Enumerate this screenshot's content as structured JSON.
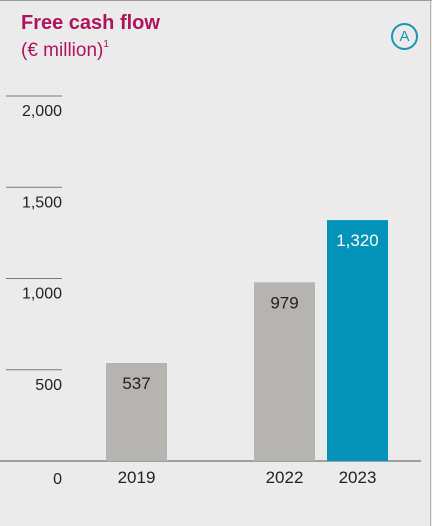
{
  "header": {
    "title": "Free cash flow",
    "subtitle": "(€ million)",
    "subtitle_note": "1",
    "badge": "A"
  },
  "colors": {
    "title": "#b0135e",
    "bar_past": "#b5b4b1",
    "bar_current": "#0393b8",
    "badge": "#1596b5",
    "background": "#ebebeb"
  },
  "chart_data": {
    "type": "bar",
    "title": "Free cash flow",
    "ylabel": "(€ million)",
    "xlabel": "",
    "ylim": [
      0,
      2000
    ],
    "yticks": [
      0,
      500,
      1000,
      1500,
      2000
    ],
    "ytick_labels": [
      "0",
      "500",
      "1,000",
      "1,500",
      "2,000"
    ],
    "categories": [
      "2019",
      "2022",
      "2023"
    ],
    "values": [
      537,
      979,
      1320
    ],
    "value_labels": [
      "537",
      "979",
      "1,320"
    ],
    "highlight": [
      false,
      false,
      true
    ]
  }
}
